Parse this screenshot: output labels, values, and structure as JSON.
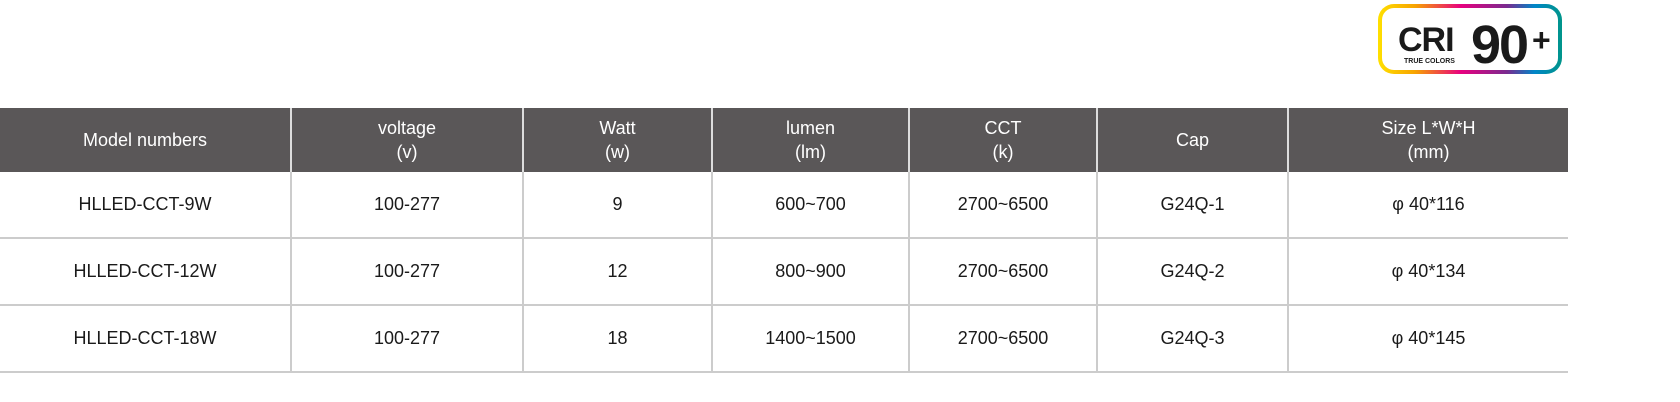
{
  "badge": {
    "cri": "CRI",
    "subtitle": "TRUE COLORS",
    "value": "90",
    "plus": "+"
  },
  "table": {
    "headers": [
      [
        "Model numbers",
        ""
      ],
      [
        "voltage",
        "(v)"
      ],
      [
        "Watt",
        "(w)"
      ],
      [
        "lumen",
        "(lm)"
      ],
      [
        "CCT",
        "(k)"
      ],
      [
        "Cap",
        ""
      ],
      [
        "Size L*W*H",
        "(mm)"
      ]
    ],
    "rows": [
      [
        "HLLED-CCT-9W",
        "100-277",
        "9",
        "600~700",
        "2700~6500",
        "G24Q-1",
        "φ 40*116"
      ],
      [
        "HLLED-CCT-12W",
        "100-277",
        "12",
        "800~900",
        "2700~6500",
        "G24Q-2",
        "φ 40*134"
      ],
      [
        "HLLED-CCT-18W",
        "100-277",
        "18",
        "1400~1500",
        "2700~6500",
        "G24Q-3",
        "φ 40*145"
      ]
    ]
  }
}
